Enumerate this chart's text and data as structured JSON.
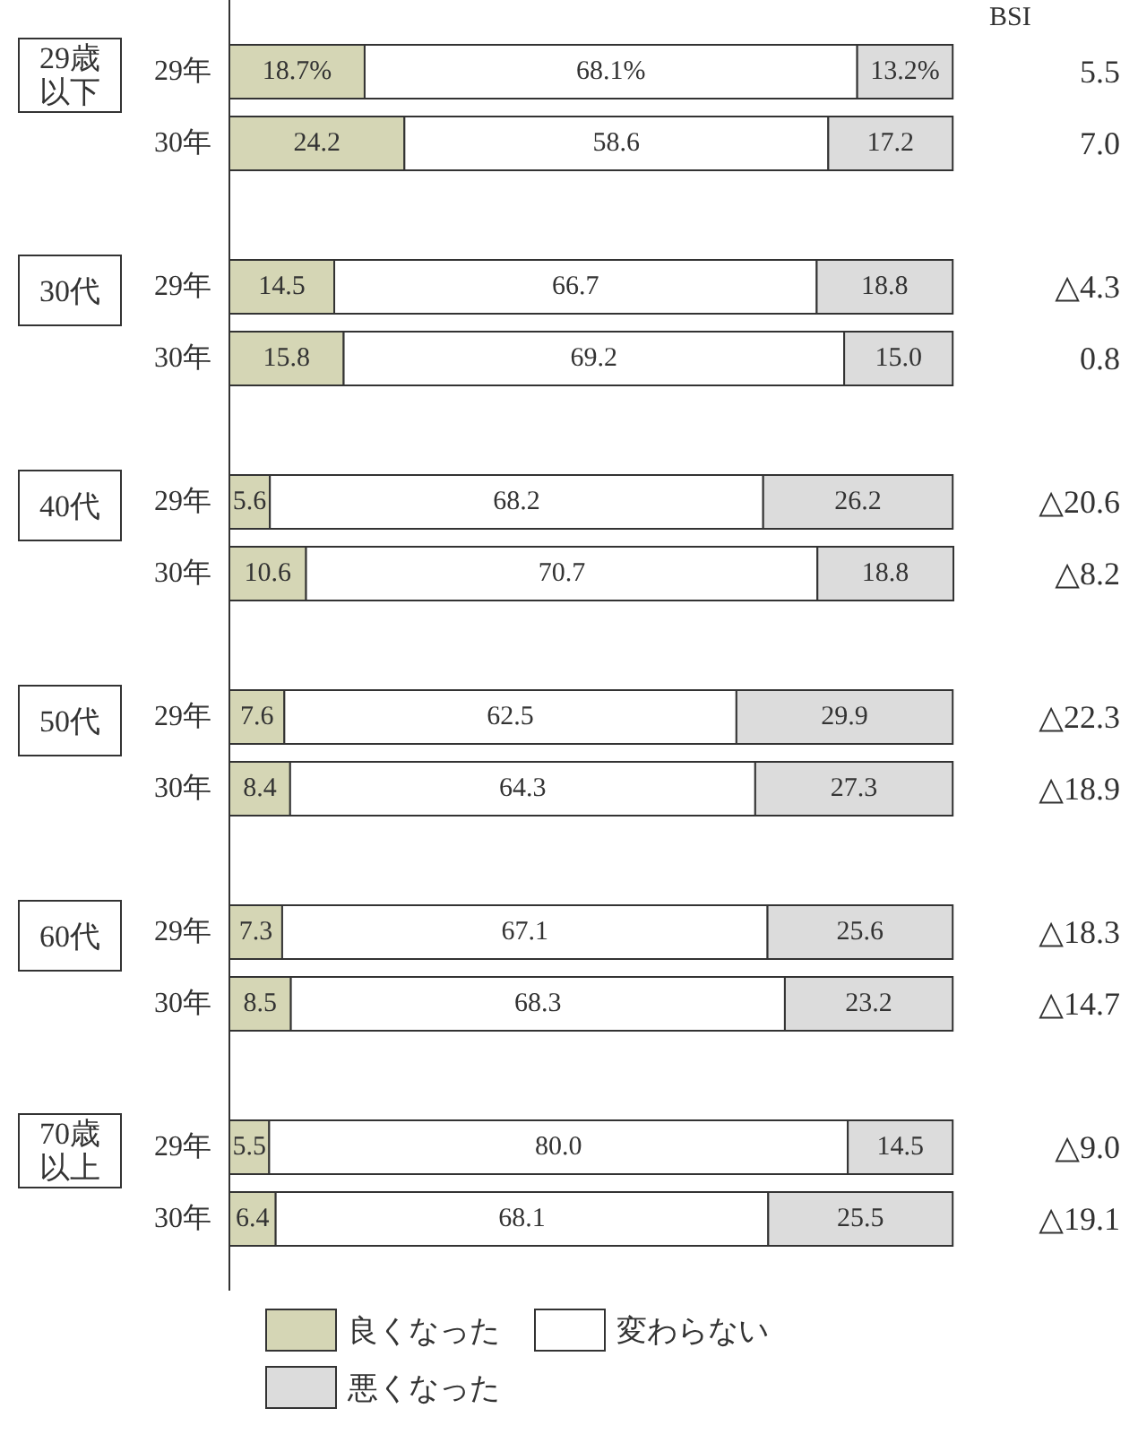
{
  "chart_data": {
    "type": "bar",
    "orientation": "horizontal",
    "stacked": true,
    "legend": "bottom",
    "categories": [
      "29年",
      "30年",
      "29年",
      "30年",
      "29年",
      "30年",
      "29年",
      "30年",
      "29年",
      "30年",
      "29年",
      "30年"
    ],
    "series": [
      {
        "name": "良くなった",
        "color": "#d5d6b5",
        "values": [
          18.7,
          24.2,
          14.5,
          15.8,
          5.6,
          10.6,
          7.6,
          8.4,
          7.3,
          8.5,
          5.5,
          6.4
        ],
        "value_labels": [
          "18.7%",
          "24.2",
          "14.5",
          "15.8",
          "5.6",
          "10.6",
          "7.6",
          "8.4",
          "7.3",
          "8.5",
          "5.5",
          "6.4"
        ]
      },
      {
        "name": "変わらない",
        "color": "#ffffff",
        "values": [
          68.1,
          58.6,
          66.7,
          69.2,
          68.2,
          70.7,
          62.5,
          64.3,
          67.1,
          68.3,
          80.0,
          68.1
        ],
        "value_labels": [
          "68.1%",
          "58.6",
          "66.7",
          "69.2",
          "68.2",
          "70.7",
          "62.5",
          "64.3",
          "67.1",
          "68.3",
          "80.0",
          "68.1"
        ]
      },
      {
        "name": "悪くなった",
        "color": "#dcdcdc",
        "values": [
          13.2,
          17.2,
          18.8,
          15.0,
          26.2,
          18.8,
          29.9,
          27.3,
          25.6,
          23.2,
          14.5,
          25.5
        ],
        "value_labels": [
          "13.2%",
          "17.2",
          "18.8",
          "15.0",
          "26.2",
          "18.8",
          "29.9",
          "27.3",
          "25.6",
          "23.2",
          "14.5",
          "25.5"
        ]
      }
    ],
    "annotations": [
      "BSI",
      "5.5",
      "7.0",
      "△4.3",
      "0.8",
      "△20.6",
      "△8.2",
      "△22.3",
      "△18.9",
      "△18.3",
      "△14.7",
      "△9.0",
      "△19.1",
      "29歳以下",
      "30代",
      "40代",
      "50代",
      "60代",
      "70歳以上"
    ]
  }
}
